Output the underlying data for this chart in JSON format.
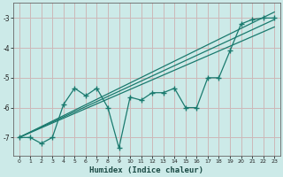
{
  "title": "",
  "xlabel": "Humidex (Indice chaleur)",
  "ylabel": "",
  "bg_color": "#cceae8",
  "grid_color": "#ccb8b8",
  "line_color": "#1a7a6e",
  "xlim": [
    -0.5,
    23.5
  ],
  "ylim": [
    -7.6,
    -2.5
  ],
  "yticks": [
    -7,
    -6,
    -5,
    -4,
    -3
  ],
  "xticks": [
    0,
    1,
    2,
    3,
    4,
    5,
    6,
    7,
    8,
    9,
    10,
    11,
    12,
    13,
    14,
    15,
    16,
    17,
    18,
    19,
    20,
    21,
    22,
    23
  ],
  "data_x": [
    0,
    1,
    2,
    3,
    4,
    5,
    6,
    7,
    8,
    9,
    10,
    11,
    12,
    13,
    14,
    15,
    16,
    17,
    18,
    19,
    20,
    21,
    22,
    23
  ],
  "data_y": [
    -7.0,
    -7.0,
    -7.2,
    -7.0,
    -5.9,
    -5.35,
    -5.6,
    -5.35,
    -6.0,
    -7.35,
    -5.65,
    -5.75,
    -5.5,
    -5.5,
    -5.35,
    -6.0,
    -6.0,
    -5.0,
    -5.0,
    -4.1,
    -3.2,
    -3.05,
    -3.0,
    -3.0
  ],
  "trend1_x": [
    0,
    23
  ],
  "trend1_y": [
    -7.0,
    -2.8
  ],
  "trend2_x": [
    0,
    23
  ],
  "trend2_y": [
    -7.0,
    -3.05
  ],
  "trend3_x": [
    0,
    23
  ],
  "trend3_y": [
    -7.0,
    -3.3
  ]
}
